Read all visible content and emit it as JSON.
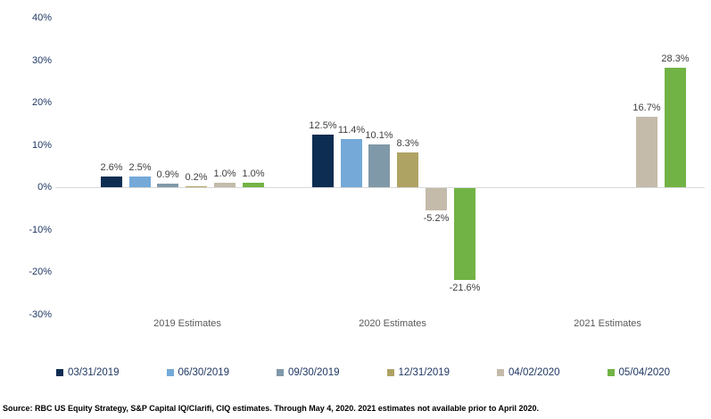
{
  "meta": {
    "source_note": "Source: RBC US Equity Strategy, S&P Capital IQ/Clarifi, CIQ estimates. Through May 4, 2020. 2021 estimates not available prior to April 2020."
  },
  "colors": {
    "axis_line": "#d9d9d9",
    "tick_label": "#1f3864",
    "value_label": "#404040",
    "category_label": "#595959",
    "legend_label": "#1f3864",
    "background": "#ffffff"
  },
  "chart_data": {
    "type": "bar",
    "title": "",
    "xlabel": "",
    "ylabel": "",
    "categories": [
      "2019 Estimates",
      "2020 Estimates",
      "2021 Estimates"
    ],
    "series": [
      {
        "name": "03/31/2019",
        "color": "#0d2d52",
        "values": [
          2.6,
          12.5,
          null
        ]
      },
      {
        "name": "06/30/2019",
        "color": "#74a9d8",
        "values": [
          2.5,
          11.4,
          null
        ]
      },
      {
        "name": "09/30/2019",
        "color": "#8099a8",
        "values": [
          0.9,
          10.1,
          null
        ]
      },
      {
        "name": "12/31/2019",
        "color": "#afa364",
        "values": [
          0.2,
          8.3,
          null
        ]
      },
      {
        "name": "04/02/2020",
        "color": "#c4bbaa",
        "values": [
          1.0,
          -5.2,
          16.7
        ]
      },
      {
        "name": "05/04/2020",
        "color": "#72b345",
        "values": [
          1.0,
          -21.6,
          28.3
        ]
      }
    ],
    "data_labels": [
      [
        "2.6%",
        "2.5%",
        "0.9%",
        "0.2%",
        "1.0%",
        "1.0%"
      ],
      [
        "12.5%",
        "11.4%",
        "10.1%",
        "8.3%",
        "-5.2%",
        "-21.6%"
      ],
      [
        null,
        null,
        null,
        null,
        "16.7%",
        "28.3%"
      ]
    ],
    "y_axis": {
      "min": -30,
      "max": 40,
      "ticks": [
        40,
        30,
        20,
        10,
        0,
        -10,
        -20,
        -30
      ],
      "tick_suffix": "%"
    },
    "grid": "zero-line-only",
    "legend_position": "bottom"
  }
}
